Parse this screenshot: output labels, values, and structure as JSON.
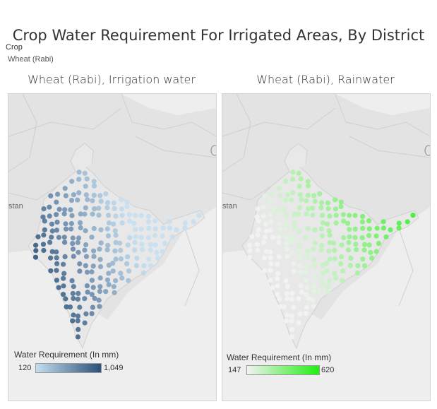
{
  "title": "Crop Water Requirement For Irrigated Areas, By District",
  "filter": {
    "label": "Crop",
    "value": "Wheat (Rabi)"
  },
  "maps": [
    {
      "title": "Wheat (Rabi), Irrigation water",
      "place_label": "stan",
      "legend": {
        "title": "Water Requirement (In mm)",
        "min": "120",
        "max": "1,049",
        "color_low": "#c4def0",
        "color_high": "#2a4f78"
      }
    },
    {
      "title": "Wheat (Rabi), Rainwater",
      "place_label": "stan",
      "legend": {
        "title": "Water Requirement (In mm)",
        "min": "147",
        "max": "620",
        "color_low": "#f2f2f2",
        "color_high": "#22ee11"
      }
    }
  ],
  "colors": {
    "land": "#e3e3e3",
    "sea": "#eeeeee",
    "border": "#c9c9c9"
  }
}
